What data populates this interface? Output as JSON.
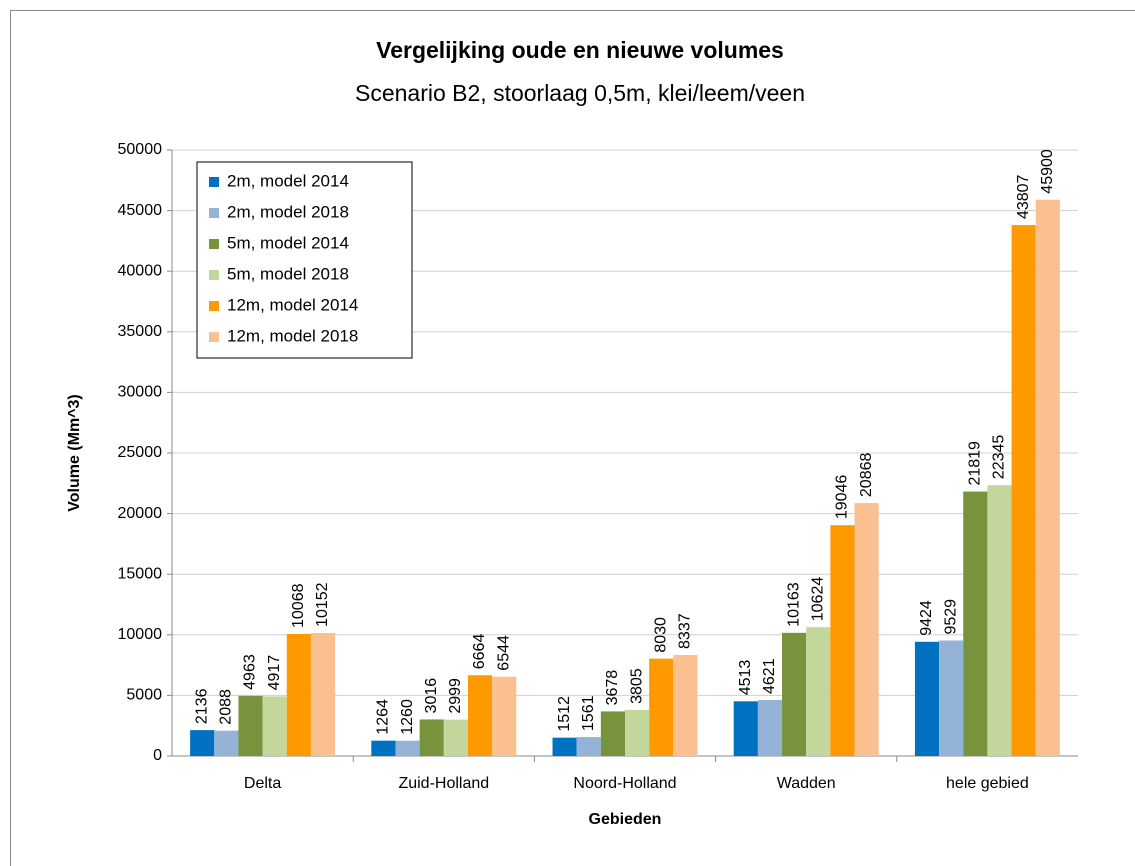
{
  "chart_data": {
    "type": "bar",
    "title": "Vergelijking oude en nieuwe volumes",
    "subtitle": "Scenario B2, stoorlaag 0,5m, klei/leem/veen",
    "x_label": "Gebieden",
    "y_label": "Volume (Mm^3)",
    "categories": [
      "Delta",
      "Zuid-Holland",
      "Noord-Holland",
      "Wadden",
      "hele gebied"
    ],
    "series": [
      {
        "name": "2m, model 2014",
        "color": "#0070c0",
        "values": [
          2136,
          1264,
          1512,
          4513,
          9424
        ]
      },
      {
        "name": "2m, model 2018",
        "color": "#95b3d7",
        "values": [
          2088,
          1260,
          1561,
          4621,
          9529
        ]
      },
      {
        "name": "5m, model 2014",
        "color": "#77933c",
        "values": [
          4963,
          3016,
          3678,
          10163,
          21819
        ]
      },
      {
        "name": "5m, model 2018",
        "color": "#c3d69b",
        "values": [
          4917,
          2999,
          3805,
          10624,
          22345
        ]
      },
      {
        "name": "12m, model 2014",
        "color": "#ff9900",
        "values": [
          10068,
          6664,
          8030,
          19046,
          43807
        ]
      },
      {
        "name": "12m, model 2018",
        "color": "#fac090",
        "values": [
          10152,
          6544,
          8337,
          20868,
          45900
        ]
      }
    ],
    "ylim": [
      0,
      50000
    ],
    "yticks": [
      0,
      5000,
      10000,
      15000,
      20000,
      25000,
      30000,
      35000,
      40000,
      45000,
      50000
    ],
    "grid": true,
    "legend": "top-left"
  }
}
